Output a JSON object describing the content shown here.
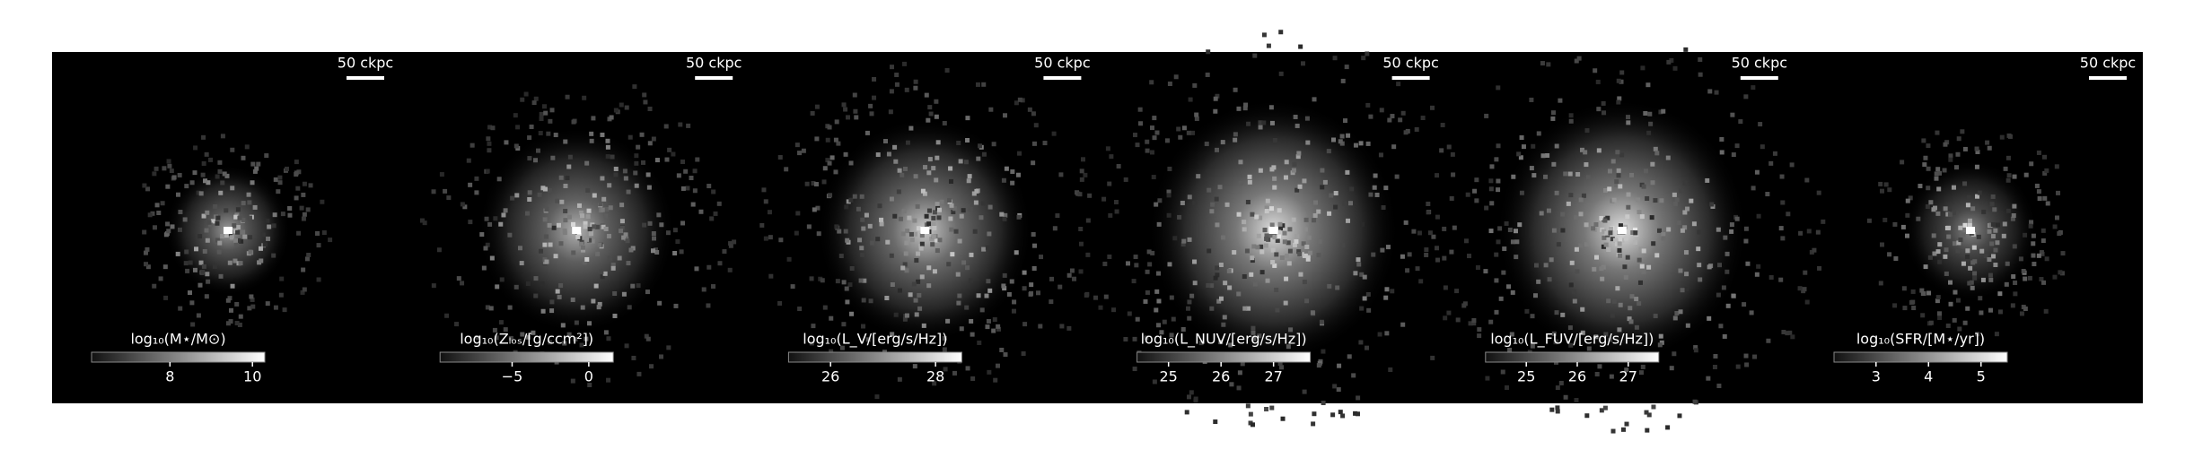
{
  "panels": [
    {
      "scale_bar": "50 ckpc",
      "colorbar": {
        "label": "log₁₀(M⋆/M⊙)",
        "lim": [
          6.1,
          10.3
        ],
        "ticks": [
          8,
          10
        ]
      }
    },
    {
      "scale_bar": "50 ckpc",
      "colorbar": {
        "label": "log₁₀(Zₗₒₛ/[g/ccm²])",
        "lim": [
          -9.7,
          1.6
        ],
        "ticks": [
          {
            "value": -5,
            "label": "−5"
          },
          0
        ]
      }
    },
    {
      "scale_bar": "50 ckpc",
      "colorbar": {
        "label": "log₁₀(L_V/[erg/s/Hz])",
        "lim": [
          25.2,
          28.5
        ],
        "ticks": [
          26,
          28
        ]
      }
    },
    {
      "scale_bar": "50 ckpc",
      "colorbar": {
        "label": "log₁₀(L_NUV/[erg/s/Hz])",
        "lim": [
          24.4,
          27.7
        ],
        "ticks": [
          25,
          26,
          27
        ]
      }
    },
    {
      "scale_bar": "50 ckpc",
      "colorbar": {
        "label": "log₁₀(L_FUV/[erg/s/Hz])",
        "lim": [
          24.2,
          27.6
        ],
        "ticks": [
          25,
          26,
          27
        ]
      }
    },
    {
      "scale_bar": "50 ckpc",
      "colorbar": {
        "label": "log₁₀(SFR/[M⋆/yr])",
        "lim": [
          2.2,
          5.5
        ],
        "ticks": [
          3,
          4,
          5
        ]
      }
    }
  ]
}
